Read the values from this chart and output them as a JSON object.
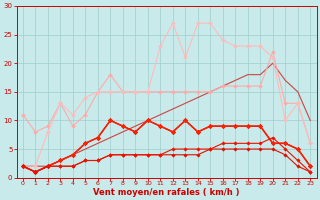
{
  "x": [
    0,
    1,
    2,
    3,
    4,
    5,
    6,
    7,
    8,
    9,
    10,
    11,
    12,
    13,
    14,
    15,
    16,
    17,
    18,
    19,
    20,
    21,
    22,
    23
  ],
  "series": [
    {
      "y": [
        11,
        8,
        9,
        13,
        9,
        11,
        15,
        18,
        15,
        15,
        15,
        15,
        15,
        15,
        15,
        15,
        16,
        16,
        16,
        16,
        22,
        13,
        13,
        6
      ],
      "color": "#ffaaaa",
      "linewidth": 0.8,
      "marker": "D",
      "markersize": 2.0,
      "zorder": 3
    },
    {
      "y": [
        2,
        2,
        8,
        13,
        11,
        14,
        15,
        15,
        15,
        15,
        15,
        23,
        27,
        21,
        27,
        27,
        24,
        23,
        23,
        23,
        21,
        10,
        13,
        6
      ],
      "color": "#ffbbbb",
      "linewidth": 0.8,
      "marker": "D",
      "markersize": 2.0,
      "zorder": 3
    },
    {
      "y": [
        2,
        1,
        2,
        3,
        4,
        6,
        7,
        10,
        9,
        8,
        10,
        9,
        8,
        10,
        8,
        9,
        9,
        9,
        9,
        9,
        6,
        6,
        5,
        2
      ],
      "color": "#cc0000",
      "linewidth": 1.0,
      "marker": "D",
      "markersize": 2.2,
      "zorder": 4
    },
    {
      "y": [
        2,
        1,
        2,
        3,
        4,
        6,
        7,
        10,
        9,
        8,
        10,
        9,
        8,
        10,
        8,
        9,
        9,
        9,
        9,
        9,
        6,
        6,
        5,
        2
      ],
      "color": "#ff2200",
      "linewidth": 1.0,
      "marker": "D",
      "markersize": 2.2,
      "zorder": 4
    },
    {
      "y": [
        2,
        1,
        2,
        2,
        2,
        3,
        3,
        4,
        4,
        4,
        4,
        4,
        4,
        4,
        4,
        5,
        5,
        5,
        5,
        5,
        5,
        4,
        2,
        1
      ],
      "color": "#dd1100",
      "linewidth": 0.8,
      "marker": "D",
      "markersize": 1.8,
      "zorder": 4
    },
    {
      "y": [
        2,
        1,
        2,
        2,
        2,
        3,
        3,
        4,
        4,
        4,
        4,
        4,
        5,
        5,
        5,
        5,
        6,
        6,
        6,
        6,
        7,
        5,
        3,
        1
      ],
      "color": "#ee1100",
      "linewidth": 0.8,
      "marker": "D",
      "markersize": 1.8,
      "zorder": 4
    },
    {
      "y": [
        2,
        2,
        2,
        3,
        4,
        5,
        6,
        7,
        8,
        9,
        10,
        11,
        12,
        13,
        14,
        15,
        16,
        17,
        18,
        18,
        20,
        17,
        15,
        10
      ],
      "color": "#cc4444",
      "linewidth": 0.8,
      "marker": null,
      "markersize": 0,
      "zorder": 2
    }
  ],
  "xlabel": "Vent moyen/en rafales ( km/h )",
  "xlim": [
    -0.5,
    23.5
  ],
  "ylim": [
    0,
    30
  ],
  "yticks": [
    0,
    5,
    10,
    15,
    20,
    25,
    30
  ],
  "xticks": [
    0,
    1,
    2,
    3,
    4,
    5,
    6,
    7,
    8,
    9,
    10,
    11,
    12,
    13,
    14,
    15,
    16,
    17,
    18,
    19,
    20,
    21,
    22,
    23
  ],
  "bg_color": "#c8eaea",
  "grid_color": "#a0cccc",
  "axis_color": "#cc0000",
  "tick_color": "#cc0000",
  "label_color": "#cc0000"
}
